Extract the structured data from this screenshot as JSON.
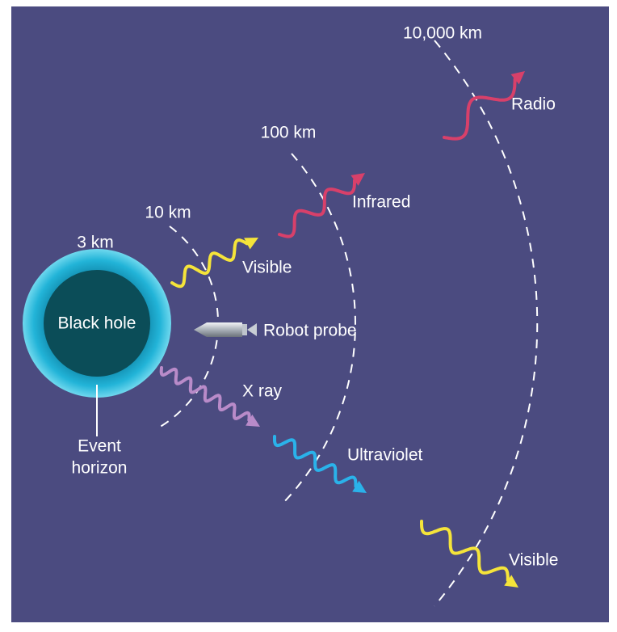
{
  "rings": [
    "3 km",
    "10 km",
    "100 km",
    "10,000 km"
  ],
  "objects": {
    "black_hole": "Black hole",
    "event_horizon": [
      "Event",
      "horizon"
    ],
    "robot_probe": "Robot probe"
  },
  "radiation": [
    "Radio",
    "Infrared",
    "Visible",
    "X ray",
    "Ultraviolet",
    "Visible"
  ]
}
